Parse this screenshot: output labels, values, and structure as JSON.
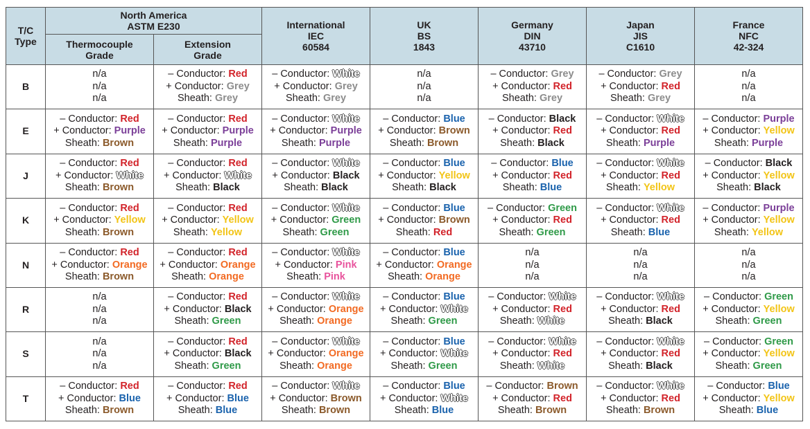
{
  "header": {
    "type": [
      "T/C",
      "Type"
    ],
    "north_america": {
      "title": [
        "North America",
        "ASTM E230"
      ],
      "sub": [
        [
          "Thermocouple",
          "Grade"
        ],
        [
          "Extension",
          "Grade"
        ]
      ]
    },
    "standards": [
      [
        "International",
        "IEC",
        "60584"
      ],
      [
        "UK",
        "BS",
        "1843"
      ],
      [
        "Germany",
        "DIN",
        "43710"
      ],
      [
        "Japan",
        "JIS",
        "C1610"
      ],
      [
        "France",
        "NFC",
        "42-324"
      ]
    ]
  },
  "labels": [
    "– Conductor:",
    "+ Conductor:",
    "Sheath:"
  ],
  "not_available": "n/a",
  "rows": [
    {
      "type": "B",
      "cells": [
        null,
        [
          "Red",
          "Grey",
          "Grey"
        ],
        [
          "White",
          "Grey",
          "Grey"
        ],
        null,
        [
          "Grey",
          "Red",
          "Grey"
        ],
        [
          "Grey",
          "Red",
          "Grey"
        ],
        null
      ]
    },
    {
      "type": "E",
      "cells": [
        [
          "Red",
          "Purple",
          "Brown"
        ],
        [
          "Red",
          "Purple",
          "Purple"
        ],
        [
          "White",
          "Purple",
          "Purple"
        ],
        [
          "Blue",
          "Brown",
          "Brown"
        ],
        [
          "Black",
          "Red",
          "Black"
        ],
        [
          "White",
          "Red",
          "Purple"
        ],
        [
          "Purple",
          "Yellow",
          "Purple"
        ]
      ]
    },
    {
      "type": "J",
      "cells": [
        [
          "Red",
          "White",
          "Brown"
        ],
        [
          "Red",
          "White",
          "Black"
        ],
        [
          "White",
          "Black",
          "Black"
        ],
        [
          "Blue",
          "Yellow",
          "Black"
        ],
        [
          "Blue",
          "Red",
          "Blue"
        ],
        [
          "White",
          "Red",
          "Yellow"
        ],
        [
          "Black",
          "Yellow",
          "Black"
        ]
      ]
    },
    {
      "type": "K",
      "cells": [
        [
          "Red",
          "Yellow",
          "Brown"
        ],
        [
          "Red",
          "Yellow",
          "Yellow"
        ],
        [
          "White",
          "Green",
          "Green"
        ],
        [
          "Blue",
          "Brown",
          "Red"
        ],
        [
          "Green",
          "Red",
          "Green"
        ],
        [
          "White",
          "Red",
          "Blue"
        ],
        [
          "Purple",
          "Yellow",
          "Yellow"
        ]
      ]
    },
    {
      "type": "N",
      "cells": [
        [
          "Red",
          "Orange",
          "Brown"
        ],
        [
          "Red",
          "Orange",
          "Orange"
        ],
        [
          "White",
          "Pink",
          "Pink"
        ],
        [
          "Blue",
          "Orange",
          "Orange"
        ],
        null,
        null,
        null
      ]
    },
    {
      "type": "R",
      "cells": [
        null,
        [
          "Red",
          "Black",
          "Green"
        ],
        [
          "White",
          "Orange",
          "Orange"
        ],
        [
          "Blue",
          "White",
          "Green"
        ],
        [
          "White",
          "Red",
          "White"
        ],
        [
          "White",
          "Red",
          "Black"
        ],
        [
          "Green",
          "Yellow",
          "Green"
        ]
      ]
    },
    {
      "type": "S",
      "cells": [
        null,
        [
          "Red",
          "Black",
          "Green"
        ],
        [
          "White",
          "Orange",
          "Orange"
        ],
        [
          "Blue",
          "White",
          "Green"
        ],
        [
          "White",
          "Red",
          "White"
        ],
        [
          "White",
          "Red",
          "Black"
        ],
        [
          "Green",
          "Yellow",
          "Green"
        ]
      ]
    },
    {
      "type": "T",
      "cells": [
        [
          "Red",
          "Blue",
          "Brown"
        ],
        [
          "Red",
          "Blue",
          "Blue"
        ],
        [
          "White",
          "Brown",
          "Brown"
        ],
        [
          "Blue",
          "White",
          "Blue"
        ],
        [
          "Brown",
          "Red",
          "Brown"
        ],
        [
          "White",
          "Red",
          "Brown"
        ],
        [
          "Blue",
          "Yellow",
          "Blue"
        ]
      ]
    }
  ]
}
